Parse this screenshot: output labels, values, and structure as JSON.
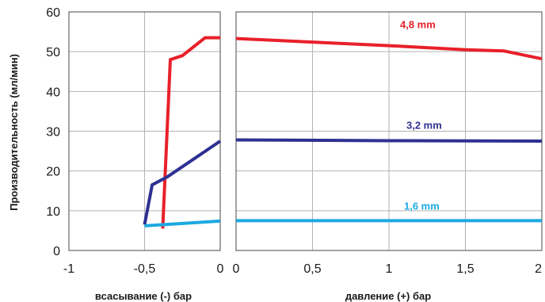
{
  "chart_data": {
    "type": "line",
    "ylabel": "Производительность (мл/мин)",
    "ylim": [
      0,
      60
    ],
    "yticks": [
      "0",
      "10",
      "20",
      "30",
      "40",
      "50",
      "60"
    ],
    "grid": true,
    "left_panel": {
      "xlabel": "всасывание (-) бар",
      "xlim": [
        -1,
        0
      ],
      "xticks": [
        "-1",
        "-0,5",
        "0"
      ]
    },
    "right_panel": {
      "xlabel": "давление (+) бар",
      "xlim": [
        0,
        2
      ],
      "xticks": [
        "0",
        "0,5",
        "1",
        "1,5",
        "2"
      ]
    },
    "series": [
      {
        "name": "4,8 mm",
        "color": "#e8202a",
        "suction": {
          "x": [
            -0.38,
            -0.33,
            -0.25,
            -0.1,
            0
          ],
          "y": [
            5.5,
            48,
            49,
            53.5,
            53.5
          ]
        },
        "pressure": {
          "x": [
            0,
            1,
            1.5,
            1.75,
            2
          ],
          "y": [
            53.3,
            51.5,
            50.5,
            50.2,
            48.2
          ]
        }
      },
      {
        "name": "3,2 mm",
        "color": "#2e3192",
        "suction": {
          "x": [
            -0.5,
            -0.45,
            -0.35,
            0
          ],
          "y": [
            6.5,
            16.5,
            18.5,
            27.5
          ]
        },
        "pressure": {
          "x": [
            0,
            1,
            2
          ],
          "y": [
            27.8,
            27.6,
            27.5
          ]
        }
      },
      {
        "name": "1,6 mm",
        "color": "#1ca9e1",
        "suction": {
          "x": [
            -0.5,
            0
          ],
          "y": [
            6.2,
            7.4
          ]
        },
        "pressure": {
          "x": [
            0,
            2
          ],
          "y": [
            7.5,
            7.5
          ]
        }
      }
    ]
  }
}
